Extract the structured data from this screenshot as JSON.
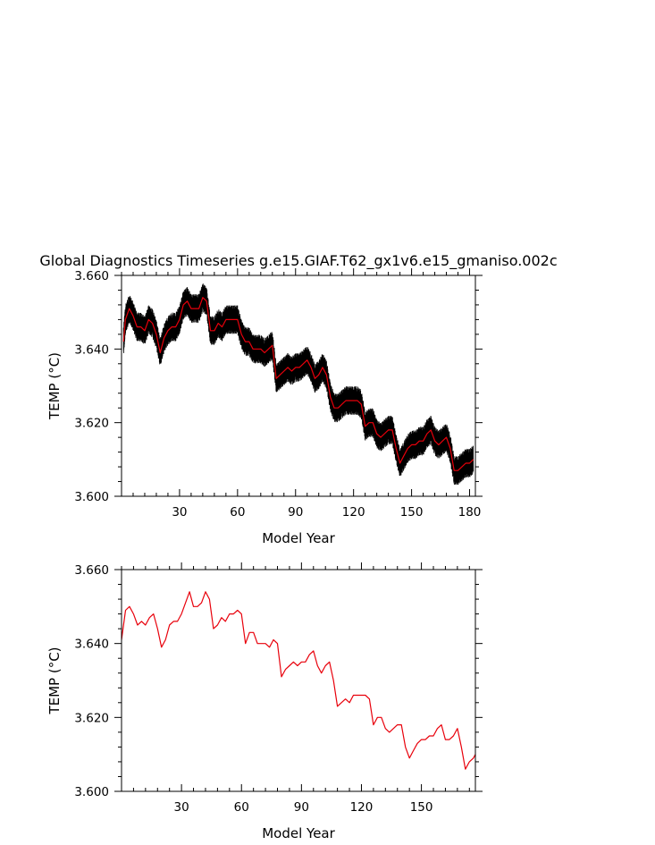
{
  "title": "Global Diagnostics Timeseries g.e15.GIAF.T62_gx1v6.e15_gmaniso.002c",
  "colors": {
    "monthly": "#000000",
    "annual": "#e8000b"
  },
  "chart_data": [
    {
      "type": "line",
      "xlabel": "Model Year",
      "ylabel": "TEMP (°C)",
      "xlim": [
        0,
        183
      ],
      "ylim": [
        3.6,
        3.66
      ],
      "xticks": [
        30,
        60,
        90,
        120,
        150,
        180
      ],
      "xtick_labels": [
        "30",
        "60",
        "90",
        "120",
        "150",
        "180"
      ],
      "yticks": [
        3.6,
        3.62,
        3.64,
        3.66
      ],
      "ytick_labels": [
        "3.600",
        "3.620",
        "3.640",
        "3.660"
      ],
      "series": [
        {
          "style": "monthly",
          "amplitude": 0.0038,
          "x": [
            1,
            2,
            4,
            6,
            8,
            10,
            12,
            14,
            16,
            18,
            20,
            22,
            24,
            26,
            28,
            30,
            32,
            34,
            36,
            38,
            40,
            42,
            44,
            46,
            48,
            50,
            52,
            54,
            56,
            58,
            60,
            62,
            64,
            66,
            68,
            70,
            72,
            74,
            76,
            78,
            80,
            82,
            84,
            86,
            88,
            90,
            92,
            94,
            96,
            98,
            100,
            102,
            104,
            106,
            108,
            110,
            112,
            114,
            116,
            118,
            120,
            122,
            124,
            126,
            128,
            130,
            132,
            134,
            136,
            138,
            140,
            142,
            144,
            146,
            148,
            150,
            152,
            154,
            156,
            158,
            160,
            162,
            164,
            166,
            168,
            170,
            172,
            174,
            176,
            178,
            180,
            182
          ],
          "y": [
            3.642,
            3.648,
            3.651,
            3.649,
            3.646,
            3.646,
            3.645,
            3.648,
            3.647,
            3.644,
            3.639,
            3.643,
            3.645,
            3.646,
            3.646,
            3.648,
            3.652,
            3.653,
            3.651,
            3.651,
            3.651,
            3.654,
            3.653,
            3.645,
            3.645,
            3.647,
            3.646,
            3.648,
            3.648,
            3.648,
            3.648,
            3.644,
            3.642,
            3.642,
            3.64,
            3.64,
            3.64,
            3.639,
            3.64,
            3.641,
            3.632,
            3.633,
            3.634,
            3.635,
            3.634,
            3.635,
            3.635,
            3.636,
            3.637,
            3.635,
            3.632,
            3.633,
            3.635,
            3.633,
            3.627,
            3.624,
            3.624,
            3.625,
            3.626,
            3.626,
            3.626,
            3.626,
            3.625,
            3.619,
            3.62,
            3.62,
            3.617,
            3.616,
            3.617,
            3.618,
            3.618,
            3.613,
            3.609,
            3.611,
            3.613,
            3.614,
            3.614,
            3.615,
            3.615,
            3.617,
            3.618,
            3.615,
            3.614,
            3.615,
            3.616,
            3.613,
            3.607,
            3.607,
            3.608,
            3.609,
            3.609,
            3.61
          ]
        },
        {
          "style": "annual",
          "x": [
            1,
            2,
            4,
            6,
            8,
            10,
            12,
            14,
            16,
            18,
            20,
            22,
            24,
            26,
            28,
            30,
            32,
            34,
            36,
            38,
            40,
            42,
            44,
            46,
            48,
            50,
            52,
            54,
            56,
            58,
            60,
            62,
            64,
            66,
            68,
            70,
            72,
            74,
            76,
            78,
            80,
            82,
            84,
            86,
            88,
            90,
            92,
            94,
            96,
            98,
            100,
            102,
            104,
            106,
            108,
            110,
            112,
            114,
            116,
            118,
            120,
            122,
            124,
            126,
            128,
            130,
            132,
            134,
            136,
            138,
            140,
            142,
            144,
            146,
            148,
            150,
            152,
            154,
            156,
            158,
            160,
            162,
            164,
            166,
            168,
            170,
            172,
            174,
            176,
            178,
            180,
            182
          ],
          "y": [
            3.642,
            3.648,
            3.651,
            3.649,
            3.646,
            3.646,
            3.645,
            3.648,
            3.647,
            3.644,
            3.639,
            3.643,
            3.645,
            3.646,
            3.646,
            3.648,
            3.652,
            3.653,
            3.651,
            3.651,
            3.651,
            3.654,
            3.653,
            3.645,
            3.645,
            3.647,
            3.646,
            3.648,
            3.648,
            3.648,
            3.648,
            3.644,
            3.642,
            3.642,
            3.64,
            3.64,
            3.64,
            3.639,
            3.64,
            3.641,
            3.632,
            3.633,
            3.634,
            3.635,
            3.634,
            3.635,
            3.635,
            3.636,
            3.637,
            3.635,
            3.632,
            3.633,
            3.635,
            3.633,
            3.627,
            3.624,
            3.624,
            3.625,
            3.626,
            3.626,
            3.626,
            3.626,
            3.625,
            3.619,
            3.62,
            3.62,
            3.617,
            3.616,
            3.617,
            3.618,
            3.618,
            3.613,
            3.609,
            3.611,
            3.613,
            3.614,
            3.614,
            3.615,
            3.615,
            3.617,
            3.618,
            3.615,
            3.614,
            3.615,
            3.616,
            3.613,
            3.607,
            3.607,
            3.608,
            3.609,
            3.609,
            3.61
          ]
        }
      ]
    },
    {
      "type": "line",
      "xlabel": "Model Year",
      "ylabel": "TEMP (°C)",
      "xlim": [
        0,
        177
      ],
      "ylim": [
        3.6,
        3.66
      ],
      "xticks": [
        30,
        60,
        90,
        120,
        150
      ],
      "xtick_labels": [
        "30",
        "60",
        "90",
        "120",
        "150"
      ],
      "yticks": [
        3.6,
        3.62,
        3.64,
        3.66
      ],
      "ytick_labels": [
        "3.600",
        "3.620",
        "3.640",
        "3.660"
      ],
      "series": [
        {
          "style": "annual",
          "x": [
            0,
            2,
            4,
            6,
            8,
            10,
            12,
            14,
            16,
            18,
            20,
            22,
            24,
            26,
            28,
            30,
            32,
            34,
            36,
            38,
            40,
            42,
            44,
            46,
            48,
            50,
            52,
            54,
            56,
            58,
            60,
            62,
            64,
            66,
            68,
            70,
            72,
            74,
            76,
            78,
            80,
            82,
            84,
            86,
            88,
            90,
            92,
            94,
            96,
            98,
            100,
            102,
            104,
            106,
            108,
            110,
            112,
            114,
            116,
            118,
            120,
            122,
            124,
            126,
            128,
            130,
            132,
            134,
            136,
            138,
            140,
            142,
            144,
            146,
            148,
            150,
            152,
            154,
            156,
            158,
            160,
            162,
            164,
            166,
            168,
            170,
            172,
            174,
            176,
            177
          ],
          "y": [
            3.641,
            3.649,
            3.65,
            3.648,
            3.645,
            3.646,
            3.645,
            3.647,
            3.648,
            3.644,
            3.639,
            3.641,
            3.645,
            3.646,
            3.646,
            3.648,
            3.651,
            3.654,
            3.65,
            3.65,
            3.651,
            3.654,
            3.652,
            3.644,
            3.645,
            3.647,
            3.646,
            3.648,
            3.648,
            3.649,
            3.648,
            3.64,
            3.643,
            3.643,
            3.64,
            3.64,
            3.64,
            3.639,
            3.641,
            3.64,
            3.631,
            3.633,
            3.634,
            3.635,
            3.634,
            3.635,
            3.635,
            3.637,
            3.638,
            3.634,
            3.632,
            3.634,
            3.635,
            3.63,
            3.623,
            3.624,
            3.625,
            3.624,
            3.626,
            3.626,
            3.626,
            3.626,
            3.625,
            3.618,
            3.62,
            3.62,
            3.617,
            3.616,
            3.617,
            3.618,
            3.618,
            3.612,
            3.609,
            3.611,
            3.613,
            3.614,
            3.614,
            3.615,
            3.615,
            3.617,
            3.618,
            3.614,
            3.614,
            3.615,
            3.617,
            3.612,
            3.606,
            3.608,
            3.609,
            3.61
          ]
        }
      ]
    }
  ]
}
